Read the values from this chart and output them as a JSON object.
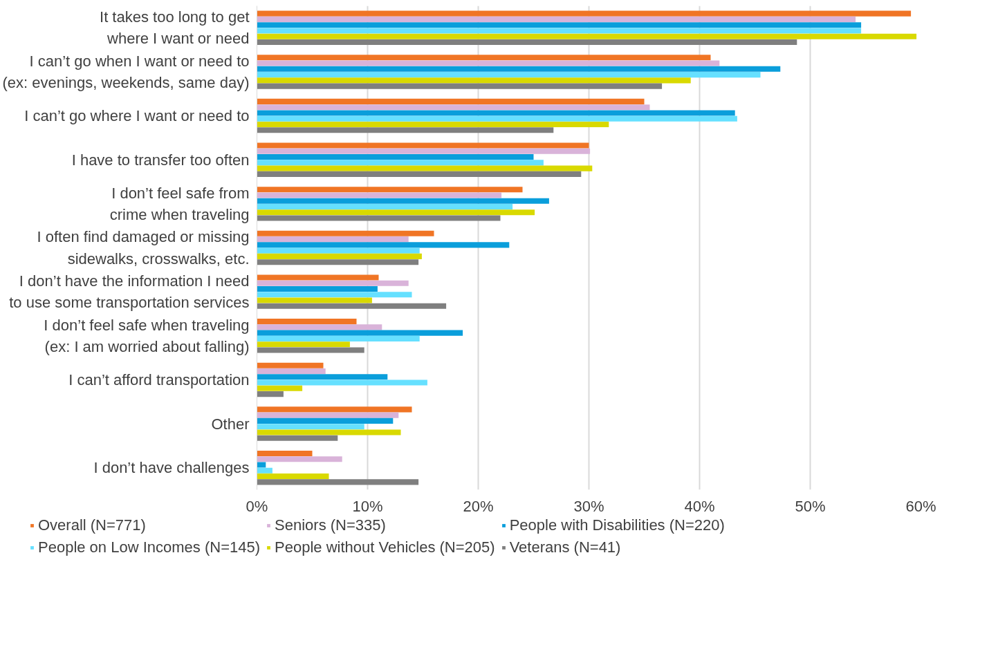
{
  "chart_data": {
    "type": "bar",
    "orientation": "horizontal",
    "categories": [
      "It takes too long to get\nwhere I want or need",
      "I can’t go when I want or need to\n(ex: evenings, weekends, same day)",
      "I can’t go where I want or need to",
      "I have to transfer too often",
      "I don’t feel safe from\ncrime when traveling",
      "I often find damaged or missing\nsidewalks, crosswalks, etc.",
      "I don’t have the information I need\nto use some transportation services",
      "I don’t feel safe when traveling\n(ex: I am worried about falling)",
      "I can’t afford transportation",
      "Other",
      "I don’t have challenges"
    ],
    "series": [
      {
        "name": "Overall (N=771)",
        "color": "#f07525",
        "values": [
          59.1,
          41.0,
          35.0,
          30.0,
          24.0,
          16.0,
          11.0,
          9.0,
          6.0,
          14.0,
          5.0
        ]
      },
      {
        "name": "Seniors (N=335)",
        "color": "#d9b3d9",
        "values": [
          54.1,
          41.8,
          35.5,
          30.1,
          22.1,
          13.7,
          13.7,
          11.3,
          6.2,
          12.8,
          7.7
        ]
      },
      {
        "name": "People with Disabilities (N=220)",
        "color": "#0a9edb",
        "values": [
          54.6,
          47.3,
          43.2,
          25.0,
          26.4,
          22.8,
          10.9,
          18.6,
          11.8,
          12.3,
          0.8
        ]
      },
      {
        "name": "People on Low Incomes (N=145)",
        "color": "#66e0ff",
        "values": [
          54.6,
          45.5,
          43.4,
          25.9,
          23.1,
          14.7,
          14.0,
          14.7,
          15.4,
          9.7,
          1.4
        ]
      },
      {
        "name": "People without Vehicles (N=205)",
        "color": "#d9d900",
        "values": [
          59.6,
          39.2,
          31.8,
          30.3,
          25.1,
          14.9,
          10.4,
          8.4,
          4.1,
          13.0,
          6.5
        ]
      },
      {
        "name": "Veterans (N=41)",
        "color": "#7f7f7f",
        "values": [
          48.8,
          36.6,
          26.8,
          29.3,
          22.0,
          14.6,
          17.1,
          9.7,
          2.4,
          7.3,
          14.6
        ]
      }
    ],
    "xlim": [
      0,
      60
    ],
    "xticks": [
      {
        "value": 0,
        "label": "0%"
      },
      {
        "value": 10,
        "label": "10%"
      },
      {
        "value": 20,
        "label": "20%"
      },
      {
        "value": 30,
        "label": "30%"
      },
      {
        "value": 40,
        "label": "40%"
      },
      {
        "value": 50,
        "label": "50%"
      },
      {
        "value": 60,
        "label": "60%"
      }
    ],
    "grid": "x",
    "legend": "bottom"
  }
}
